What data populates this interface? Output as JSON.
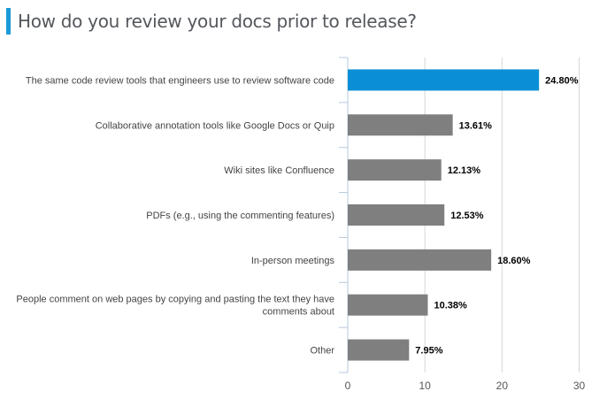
{
  "title": "How do you review your docs prior to release?",
  "chart_data": {
    "type": "bar",
    "orientation": "horizontal",
    "title": "How do you review your docs prior to release?",
    "categories": [
      [
        "The same code review tools that engineers use to review software code"
      ],
      [
        "Collaborative annotation tools like Google Docs or Quip"
      ],
      [
        "Wiki sites like Confluence"
      ],
      [
        "PDFs (e.g., using the commenting features)"
      ],
      [
        "In-person meetings"
      ],
      [
        "People comment on web pages by copying and pasting the text they have",
        "comments about"
      ],
      [
        "Other"
      ]
    ],
    "values": [
      24.8,
      13.61,
      12.13,
      12.53,
      18.6,
      10.38,
      7.95
    ],
    "value_labels": [
      "24.80%",
      "13.61%",
      "12.13%",
      "12.53%",
      "18.60%",
      "10.38%",
      "7.95%"
    ],
    "xlim": [
      0,
      30
    ],
    "xticks": [
      "0",
      "10",
      "20",
      "30"
    ],
    "grid": true,
    "colors": {
      "highlight": "#0a8fd6",
      "default": "#7f7f7f",
      "accent": "#1a9ad6"
    },
    "highlight_index": 0
  }
}
